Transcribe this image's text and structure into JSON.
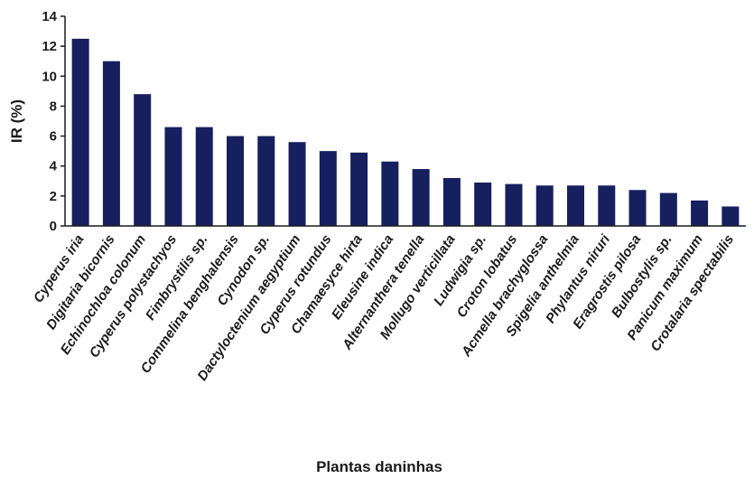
{
  "chart_data": {
    "type": "bar",
    "categories": [
      "Cyperus iria",
      "Digitaria bicornis",
      "Echinochloa colonum",
      "Cyperus polystachyos",
      "Fimbrystilis sp.",
      "Commelina benghalensis",
      "Cynodon sp.",
      "Dactyloctenium aegyptium",
      "Cyperus rotundus",
      "Chamaesyce hirta",
      "Eleusine indica",
      "Alternanthera tenella",
      "Mollugo verticillata",
      "Ludwigia sp.",
      "Croton lobatus",
      "Acmella brachyglossa",
      "Spigelia anthelmia",
      "Phylantus niruri",
      "Eragrostis pilosa",
      "Bulbostylis sp.",
      "Panicum maximum",
      "Crotalaria spectabilis"
    ],
    "values": [
      12.5,
      11.0,
      8.8,
      6.6,
      6.6,
      6.0,
      6.0,
      5.6,
      5.0,
      4.9,
      4.3,
      3.8,
      3.2,
      2.9,
      2.8,
      2.7,
      2.7,
      2.7,
      2.4,
      2.2,
      1.7,
      1.3
    ],
    "title": "",
    "xlabel": "Plantas daninhas",
    "ylabel": "IR (%)",
    "ylim": [
      0,
      14
    ],
    "yticks": [
      "0",
      "2",
      "4",
      "6",
      "8",
      "10",
      "12",
      "14"
    ],
    "grid": false,
    "bar_color": "#16205e"
  }
}
